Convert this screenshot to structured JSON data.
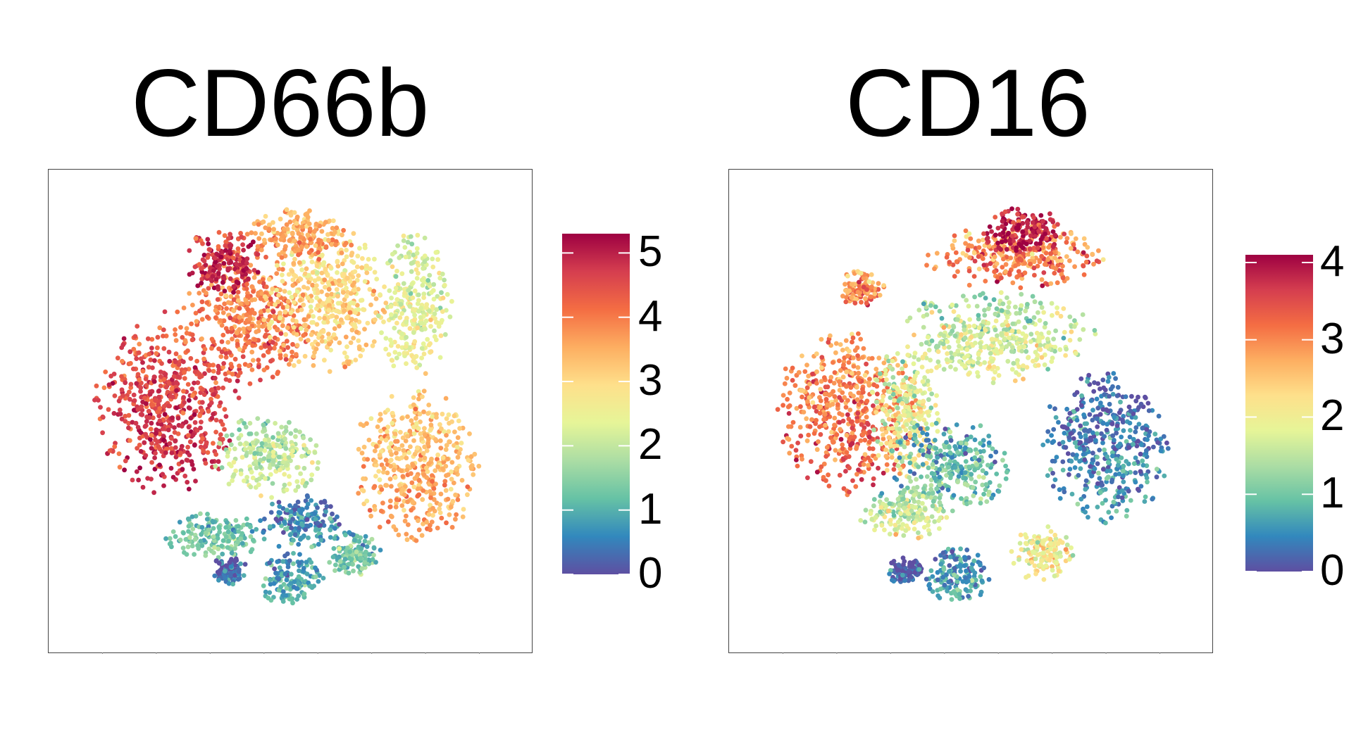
{
  "chart_data": [
    {
      "type": "scatter",
      "title": "CD66b",
      "colorbar": {
        "min": 0,
        "max": 5.3,
        "ticks": [
          "0",
          "1",
          "2",
          "3",
          "4",
          "5"
        ]
      },
      "colormap": [
        "#5e4fa2",
        "#3288bd",
        "#66c2a5",
        "#abdda4",
        "#e6f598",
        "#fee08b",
        "#fdae61",
        "#f46d43",
        "#d53e4f",
        "#9e0142"
      ],
      "axis_ticks": false,
      "clusters": [
        {
          "x": 0.22,
          "y": 0.48,
          "rx": 0.16,
          "ry": 0.2,
          "value": 4.6
        },
        {
          "x": 0.4,
          "y": 0.28,
          "rx": 0.14,
          "ry": 0.15,
          "value": 4.0
        },
        {
          "x": 0.58,
          "y": 0.25,
          "rx": 0.14,
          "ry": 0.16,
          "value": 3.0
        },
        {
          "x": 0.78,
          "y": 0.26,
          "rx": 0.08,
          "ry": 0.16,
          "value": 2.4
        },
        {
          "x": 0.35,
          "y": 0.16,
          "rx": 0.09,
          "ry": 0.07,
          "value": 4.9
        },
        {
          "x": 0.52,
          "y": 0.1,
          "rx": 0.12,
          "ry": 0.06,
          "value": 3.6
        },
        {
          "x": 0.78,
          "y": 0.62,
          "rx": 0.14,
          "ry": 0.17,
          "value": 3.4
        },
        {
          "x": 0.45,
          "y": 0.6,
          "rx": 0.12,
          "ry": 0.09,
          "value": 2.0
        },
        {
          "x": 0.52,
          "y": 0.75,
          "rx": 0.09,
          "ry": 0.06,
          "value": 0.6
        },
        {
          "x": 0.33,
          "y": 0.78,
          "rx": 0.11,
          "ry": 0.05,
          "value": 1.3
        },
        {
          "x": 0.5,
          "y": 0.88,
          "rx": 0.07,
          "ry": 0.06,
          "value": 0.9
        },
        {
          "x": 0.64,
          "y": 0.82,
          "rx": 0.06,
          "ry": 0.05,
          "value": 1.3
        },
        {
          "x": 0.36,
          "y": 0.86,
          "rx": 0.04,
          "ry": 0.03,
          "value": 0.3
        }
      ]
    },
    {
      "type": "scatter",
      "title": "CD16",
      "colorbar": {
        "min": 0,
        "max": 4.1,
        "ticks": [
          "0",
          "1",
          "2",
          "3",
          "4"
        ]
      },
      "colormap": [
        "#5e4fa2",
        "#3288bd",
        "#66c2a5",
        "#abdda4",
        "#e6f598",
        "#fee08b",
        "#fdae61",
        "#f46d43",
        "#d53e4f",
        "#9e0142"
      ],
      "axis_ticks": false,
      "clusters": [
        {
          "x": 0.22,
          "y": 0.5,
          "rx": 0.16,
          "ry": 0.18,
          "value": 3.1
        },
        {
          "x": 0.35,
          "y": 0.5,
          "rx": 0.08,
          "ry": 0.14,
          "value": 1.9
        },
        {
          "x": 0.6,
          "y": 0.15,
          "rx": 0.2,
          "ry": 0.07,
          "value": 3.0
        },
        {
          "x": 0.62,
          "y": 0.09,
          "rx": 0.09,
          "ry": 0.05,
          "value": 3.9
        },
        {
          "x": 0.55,
          "y": 0.33,
          "rx": 0.22,
          "ry": 0.1,
          "value": 1.7
        },
        {
          "x": 0.8,
          "y": 0.58,
          "rx": 0.14,
          "ry": 0.17,
          "value": 0.4
        },
        {
          "x": 0.45,
          "y": 0.62,
          "rx": 0.14,
          "ry": 0.1,
          "value": 0.9
        },
        {
          "x": 0.35,
          "y": 0.73,
          "rx": 0.1,
          "ry": 0.06,
          "value": 1.6
        },
        {
          "x": 0.66,
          "y": 0.82,
          "rx": 0.07,
          "ry": 0.06,
          "value": 2.0
        },
        {
          "x": 0.47,
          "y": 0.87,
          "rx": 0.07,
          "ry": 0.06,
          "value": 0.6
        },
        {
          "x": 0.35,
          "y": 0.86,
          "rx": 0.04,
          "ry": 0.03,
          "value": 0.1
        },
        {
          "x": 0.25,
          "y": 0.22,
          "rx": 0.05,
          "ry": 0.04,
          "value": 3.0
        }
      ]
    }
  ]
}
